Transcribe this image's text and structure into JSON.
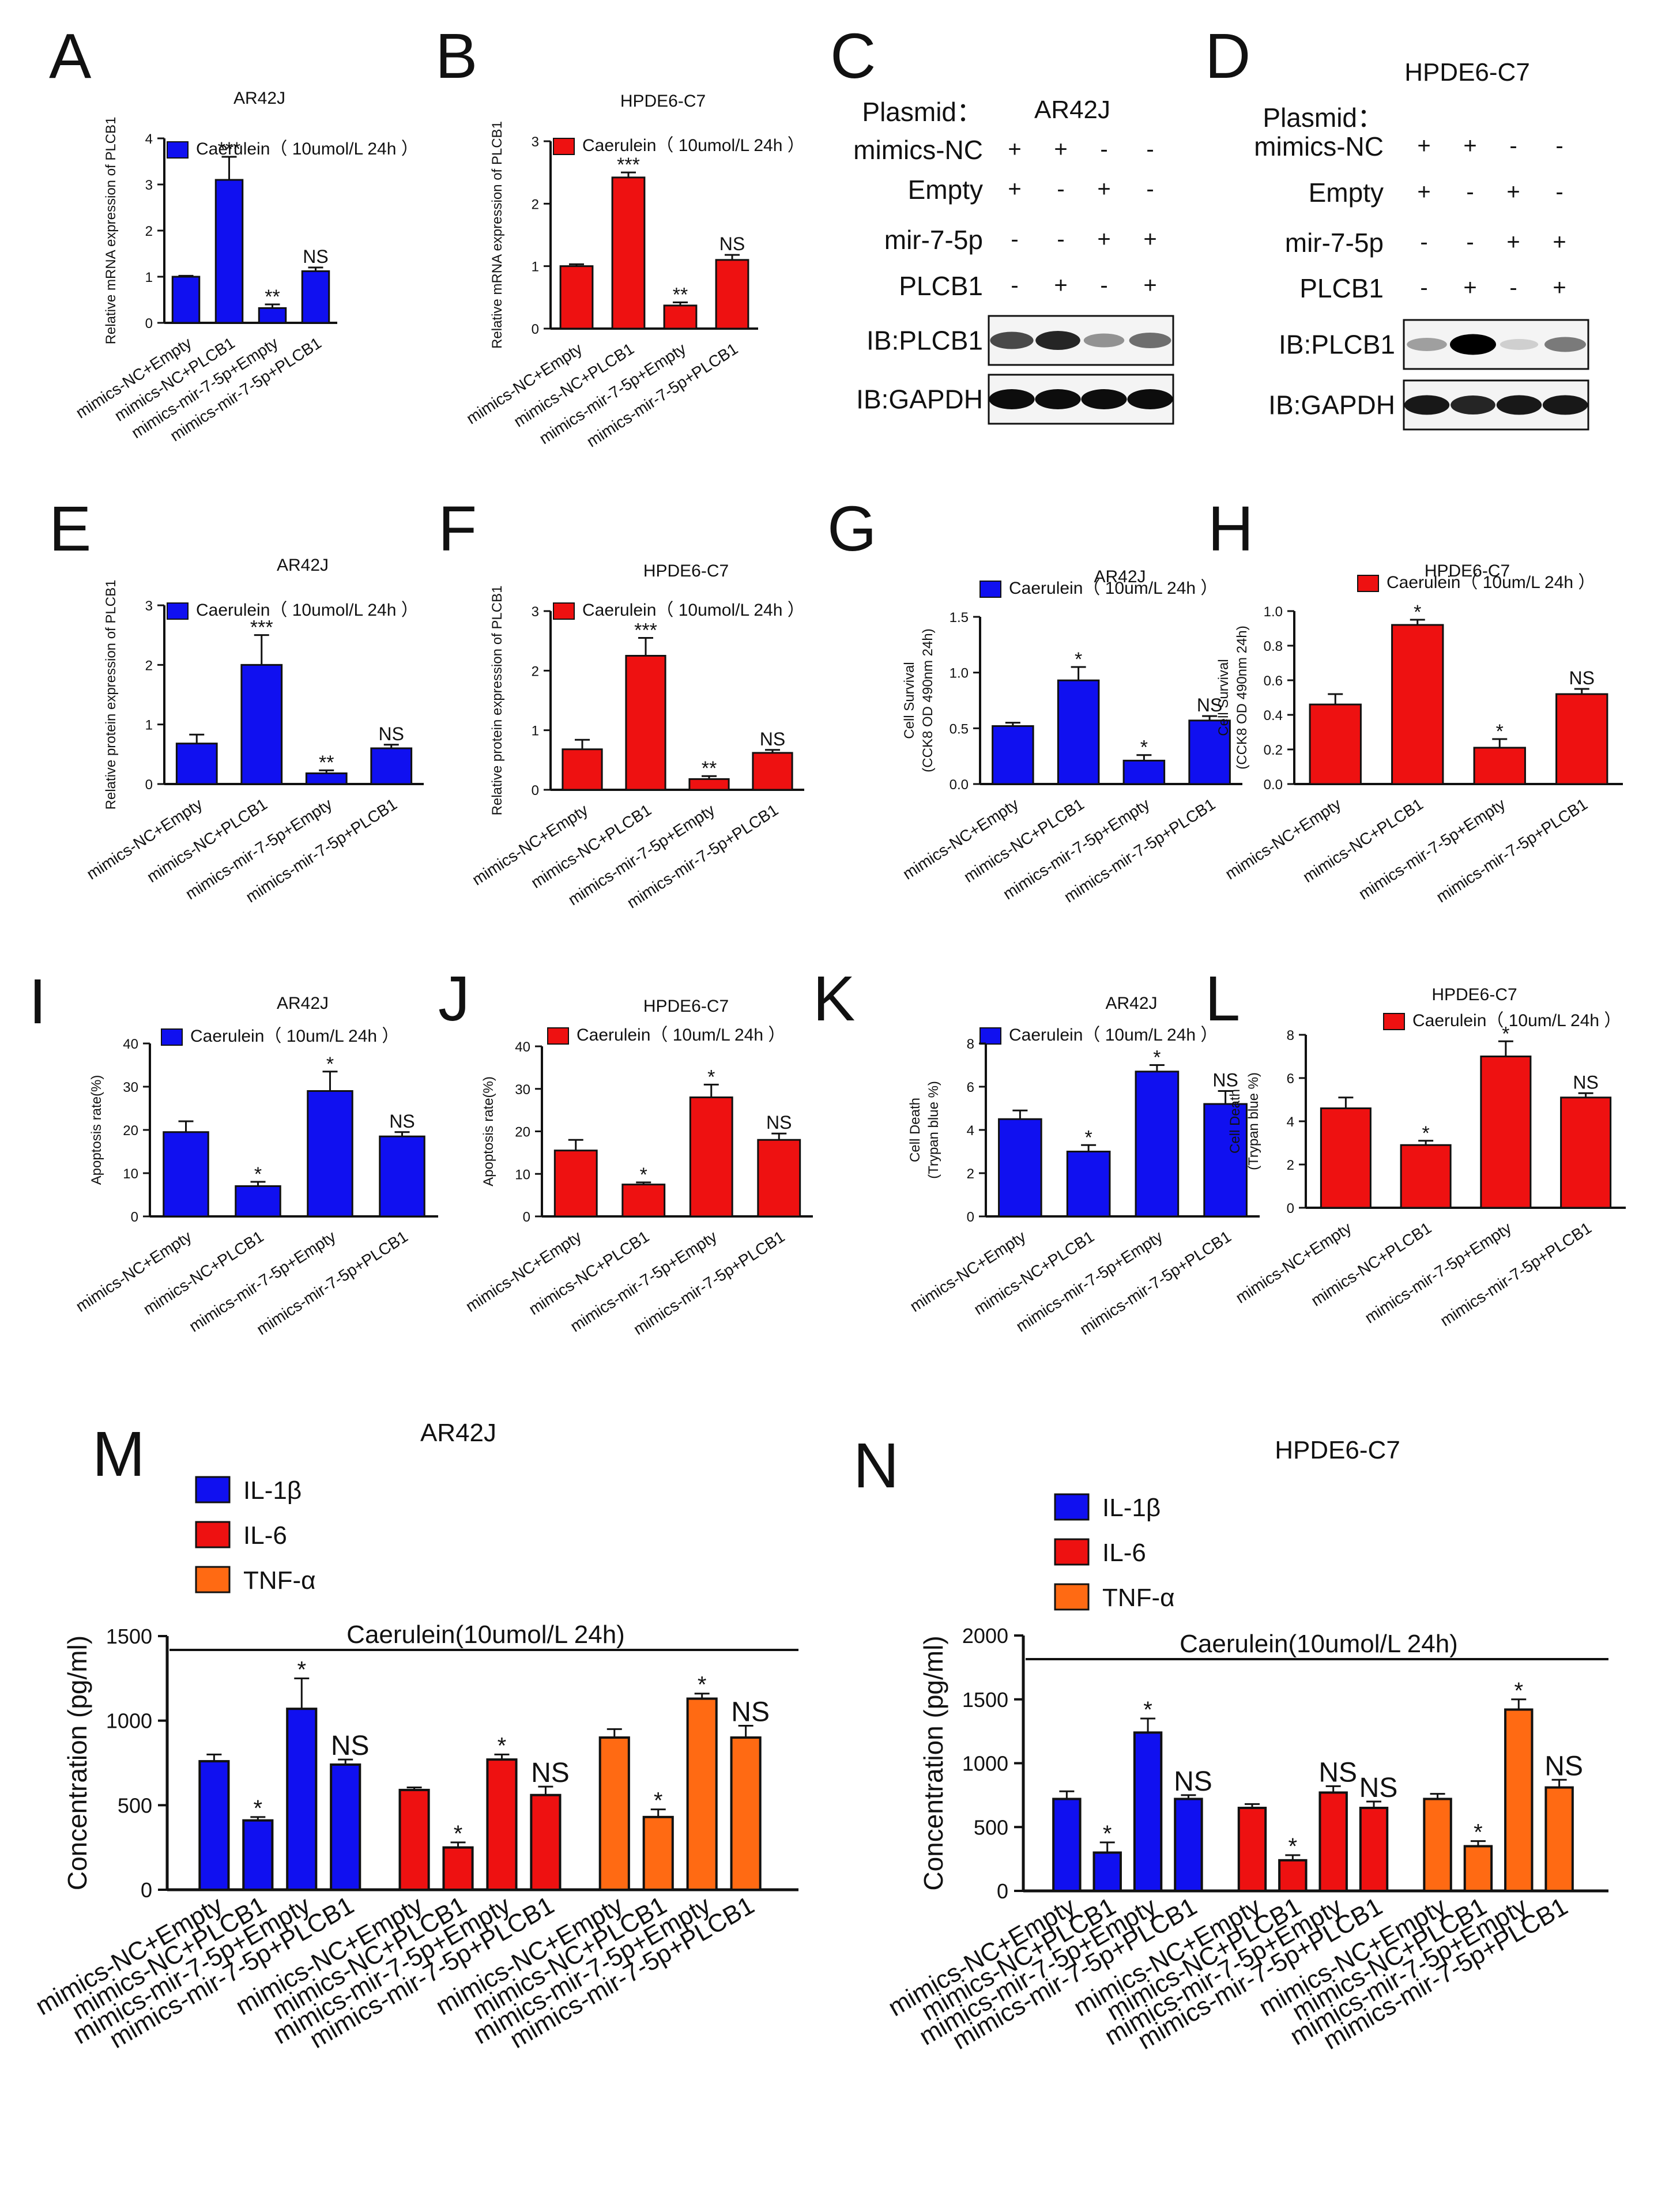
{
  "colors": {
    "blue": "#1010F0",
    "red": "#EE1111",
    "orange": "#FF6A13",
    "axis": "#111111"
  },
  "x_categories": [
    "mimics-NC+Empty",
    "mimics-NC+PLCB1",
    "mimics-mir-7-5p+Empty",
    "mimics-mir-7-5p+PLCB1"
  ],
  "chart_data": [
    {
      "id": "A",
      "type": "bar",
      "title": "AR42J",
      "legend": "Caerulein（ 10umol/L 24h ）",
      "color": "blue",
      "ylabel": "Relative mRNA expression of PLCB1",
      "yticks": [
        0,
        1,
        2,
        3,
        4
      ],
      "ylim": [
        0,
        4
      ],
      "values": [
        1.0,
        3.1,
        0.32,
        1.12
      ],
      "errors": [
        0.02,
        0.5,
        0.08,
        0.08
      ],
      "sig": [
        "",
        "***",
        "**",
        "NS"
      ]
    },
    {
      "id": "B",
      "type": "bar",
      "title": "HPDE6-C7",
      "legend": "Caerulein（ 10umol/L 24h ）",
      "color": "red",
      "ylabel": "Relative mRNA expression of PLCB1",
      "yticks": [
        0,
        1,
        2,
        3
      ],
      "ylim": [
        0,
        3
      ],
      "values": [
        1.0,
        2.42,
        0.37,
        1.1
      ],
      "errors": [
        0.03,
        0.08,
        0.05,
        0.08
      ],
      "sig": [
        "",
        "***",
        "**",
        "NS"
      ]
    },
    {
      "id": "E",
      "type": "bar",
      "title": "AR42J",
      "legend": "Caerulein（ 10umol/L 24h ）",
      "color": "blue",
      "ylabel": "Relative protein expression of PLCB1",
      "yticks": [
        0,
        1,
        2,
        3
      ],
      "ylim": [
        0,
        3
      ],
      "values": [
        0.68,
        2.0,
        0.18,
        0.6
      ],
      "errors": [
        0.15,
        0.5,
        0.05,
        0.06
      ],
      "sig": [
        "",
        "***",
        "**",
        "NS"
      ]
    },
    {
      "id": "F",
      "type": "bar",
      "title": "HPDE6-C7",
      "legend": "Caerulein（ 10umol/L 24h ）",
      "color": "red",
      "ylabel": "Relative protein expression of PLCB1",
      "yticks": [
        0,
        1,
        2,
        3
      ],
      "ylim": [
        0,
        3
      ],
      "values": [
        0.68,
        2.25,
        0.18,
        0.62
      ],
      "errors": [
        0.16,
        0.3,
        0.05,
        0.05
      ],
      "sig": [
        "",
        "***",
        "**",
        "NS"
      ]
    },
    {
      "id": "G",
      "type": "bar",
      "title": "AR42J",
      "legend": "Caerulein（ 10um/L 24h ）",
      "color": "blue",
      "ylabel": "Cell Survival",
      "ylabel2": "(CCK8 OD 490nm 24h)",
      "yticks": [
        0.0,
        0.5,
        1.0,
        1.5
      ],
      "ytick_labels": [
        "0.0",
        "0.5",
        "1.0",
        "1.5"
      ],
      "ylim": [
        0,
        1.5
      ],
      "values": [
        0.52,
        0.93,
        0.21,
        0.57
      ],
      "errors": [
        0.03,
        0.12,
        0.05,
        0.04
      ],
      "sig": [
        "",
        "*",
        "*",
        "NS"
      ]
    },
    {
      "id": "H",
      "type": "bar",
      "title": "HPDE6-C7",
      "legend": "Caerulein（ 10um/L 24h ）",
      "color": "red",
      "ylabel": "Cell Survival",
      "ylabel2": "(CCK8 OD 490nm 24h)",
      "yticks": [
        0,
        0.2,
        0.4,
        0.6,
        0.8,
        1.0
      ],
      "ytick_labels": [
        "0.0",
        "0.2",
        "0.4",
        "0.6",
        "0.8",
        "1.0"
      ],
      "ylim": [
        0,
        1.0
      ],
      "values": [
        0.46,
        0.92,
        0.21,
        0.52
      ],
      "errors": [
        0.06,
        0.03,
        0.05,
        0.03
      ],
      "sig": [
        "",
        "*",
        "*",
        "NS"
      ]
    },
    {
      "id": "I",
      "type": "bar",
      "title": "AR42J",
      "legend": "Caerulein（ 10um/L 24h ）",
      "color": "blue",
      "ylabel": "Apoptosis rate(%)",
      "yticks": [
        0,
        10,
        20,
        30,
        40
      ],
      "ylim": [
        0,
        40
      ],
      "values": [
        19.5,
        7.0,
        29.0,
        18.5
      ],
      "errors": [
        2.5,
        1.0,
        4.5,
        1.0
      ],
      "sig": [
        "",
        "*",
        "*",
        "NS"
      ]
    },
    {
      "id": "J",
      "type": "bar",
      "title": "HPDE6-C7",
      "legend": "Caerulein（ 10um/L 24h ）",
      "color": "red",
      "ylabel": "Apoptosis rate(%)",
      "yticks": [
        0,
        10,
        20,
        30,
        40
      ],
      "ylim": [
        0,
        40
      ],
      "values": [
        15.5,
        7.5,
        28.0,
        18.0
      ],
      "errors": [
        2.5,
        0.5,
        3.0,
        1.5
      ],
      "sig": [
        "",
        "*",
        "*",
        "NS"
      ]
    },
    {
      "id": "K",
      "type": "bar",
      "title": "AR42J",
      "legend": "Caerulein（ 10um/L 24h ）",
      "color": "blue",
      "ylabel": "Cell Death",
      "ylabel2": "(Trypan blue %)",
      "yticks": [
        0,
        2,
        4,
        6,
        8
      ],
      "ylim": [
        0,
        8
      ],
      "values": [
        4.5,
        3.0,
        6.7,
        5.2
      ],
      "errors": [
        0.4,
        0.3,
        0.3,
        0.6
      ],
      "sig": [
        "",
        "*",
        "*",
        "NS"
      ]
    },
    {
      "id": "L",
      "type": "bar",
      "title": "HPDE6-C7",
      "legend": "Caerulein（ 10um/L 24h ）",
      "color": "red",
      "ylabel": "Cell Death",
      "ylabel2": "(Trypan blue %)",
      "yticks": [
        0,
        2,
        4,
        6,
        8
      ],
      "ylim": [
        0,
        8
      ],
      "values": [
        4.6,
        2.9,
        7.0,
        5.1
      ],
      "errors": [
        0.5,
        0.2,
        0.7,
        0.2
      ],
      "sig": [
        "",
        "*",
        "*",
        "NS"
      ]
    },
    {
      "id": "M",
      "type": "grouped-bar",
      "title": "AR42J",
      "bracket": "Caerulein(10umol/L 24h)",
      "ylabel": "Concentration (pg/ml)",
      "yticks": [
        0,
        500,
        1000,
        1500
      ],
      "ylim": [
        0,
        1500
      ],
      "series": [
        {
          "name": "IL-1β",
          "color": "blue",
          "values": [
            760,
            410,
            1070,
            740
          ],
          "errors": [
            40,
            20,
            180,
            30
          ],
          "sig": [
            "",
            "*",
            "*",
            "NS"
          ]
        },
        {
          "name": "IL-6",
          "color": "red",
          "values": [
            590,
            250,
            770,
            560
          ],
          "errors": [
            15,
            30,
            30,
            50
          ],
          "sig": [
            "",
            "*",
            "*",
            "NS"
          ]
        },
        {
          "name": "TNF-α",
          "color": "orange",
          "values": [
            900,
            430,
            1130,
            900
          ],
          "errors": [
            50,
            45,
            30,
            70
          ],
          "sig": [
            "",
            "*",
            "*",
            "NS"
          ]
        }
      ]
    },
    {
      "id": "N",
      "type": "grouped-bar",
      "title": "HPDE6-C7",
      "bracket": "Caerulein(10umol/L 24h)",
      "ylabel": "Concentration (pg/ml)",
      "yticks": [
        0,
        500,
        1000,
        1500,
        2000
      ],
      "ylim": [
        0,
        2000
      ],
      "series": [
        {
          "name": "IL-1β",
          "color": "blue",
          "values": [
            720,
            300,
            1240,
            720
          ],
          "errors": [
            60,
            80,
            110,
            30
          ],
          "sig": [
            "",
            "*",
            "*",
            "NS"
          ]
        },
        {
          "name": "IL-6",
          "color": "red",
          "values": [
            650,
            240,
            770,
            650
          ],
          "errors": [
            30,
            40,
            50,
            50
          ],
          "sig": [
            "",
            "*",
            "NS",
            "NS"
          ]
        },
        {
          "name": "TNF-α",
          "color": "orange",
          "values": [
            720,
            350,
            1420,
            810
          ],
          "errors": [
            40,
            40,
            80,
            60
          ],
          "sig": [
            "",
            "*",
            "*",
            "NS"
          ]
        }
      ]
    }
  ],
  "western_blots": [
    {
      "id": "C",
      "title": "AR42J",
      "plasmid_label": "Plasmid：",
      "rows": [
        {
          "label": "mimics-NC",
          "marks": [
            "+",
            "+",
            "-",
            "-"
          ]
        },
        {
          "label": "Empty",
          "marks": [
            "+",
            "-",
            "+",
            "-"
          ]
        },
        {
          "label": "mir-7-5p",
          "marks": [
            "-",
            "-",
            "+",
            "+"
          ]
        },
        {
          "label": "PLCB1",
          "marks": [
            "-",
            "+",
            "-",
            "+"
          ]
        }
      ],
      "blots": [
        {
          "label": "IB:PLCB1",
          "intensity": [
            0.7,
            0.85,
            0.4,
            0.55
          ]
        },
        {
          "label": "IB:GAPDH",
          "intensity": [
            0.95,
            0.95,
            0.95,
            0.95
          ]
        }
      ]
    },
    {
      "id": "D",
      "title": "HPDE6-C7",
      "plasmid_label": "Plasmid：",
      "rows": [
        {
          "label": "mimics-NC",
          "marks": [
            "+",
            "+",
            "-",
            "-"
          ]
        },
        {
          "label": "Empty",
          "marks": [
            "+",
            "-",
            "+",
            "-"
          ]
        },
        {
          "label": "mir-7-5p",
          "marks": [
            "-",
            "-",
            "+",
            "+"
          ]
        },
        {
          "label": "PLCB1",
          "marks": [
            "-",
            "+",
            "-",
            "+"
          ]
        }
      ],
      "blots": [
        {
          "label": "IB:PLCB1",
          "intensity": [
            0.35,
            1.0,
            0.15,
            0.5
          ]
        },
        {
          "label": "IB:GAPDH",
          "intensity": [
            0.9,
            0.85,
            0.9,
            0.9
          ]
        }
      ]
    }
  ]
}
